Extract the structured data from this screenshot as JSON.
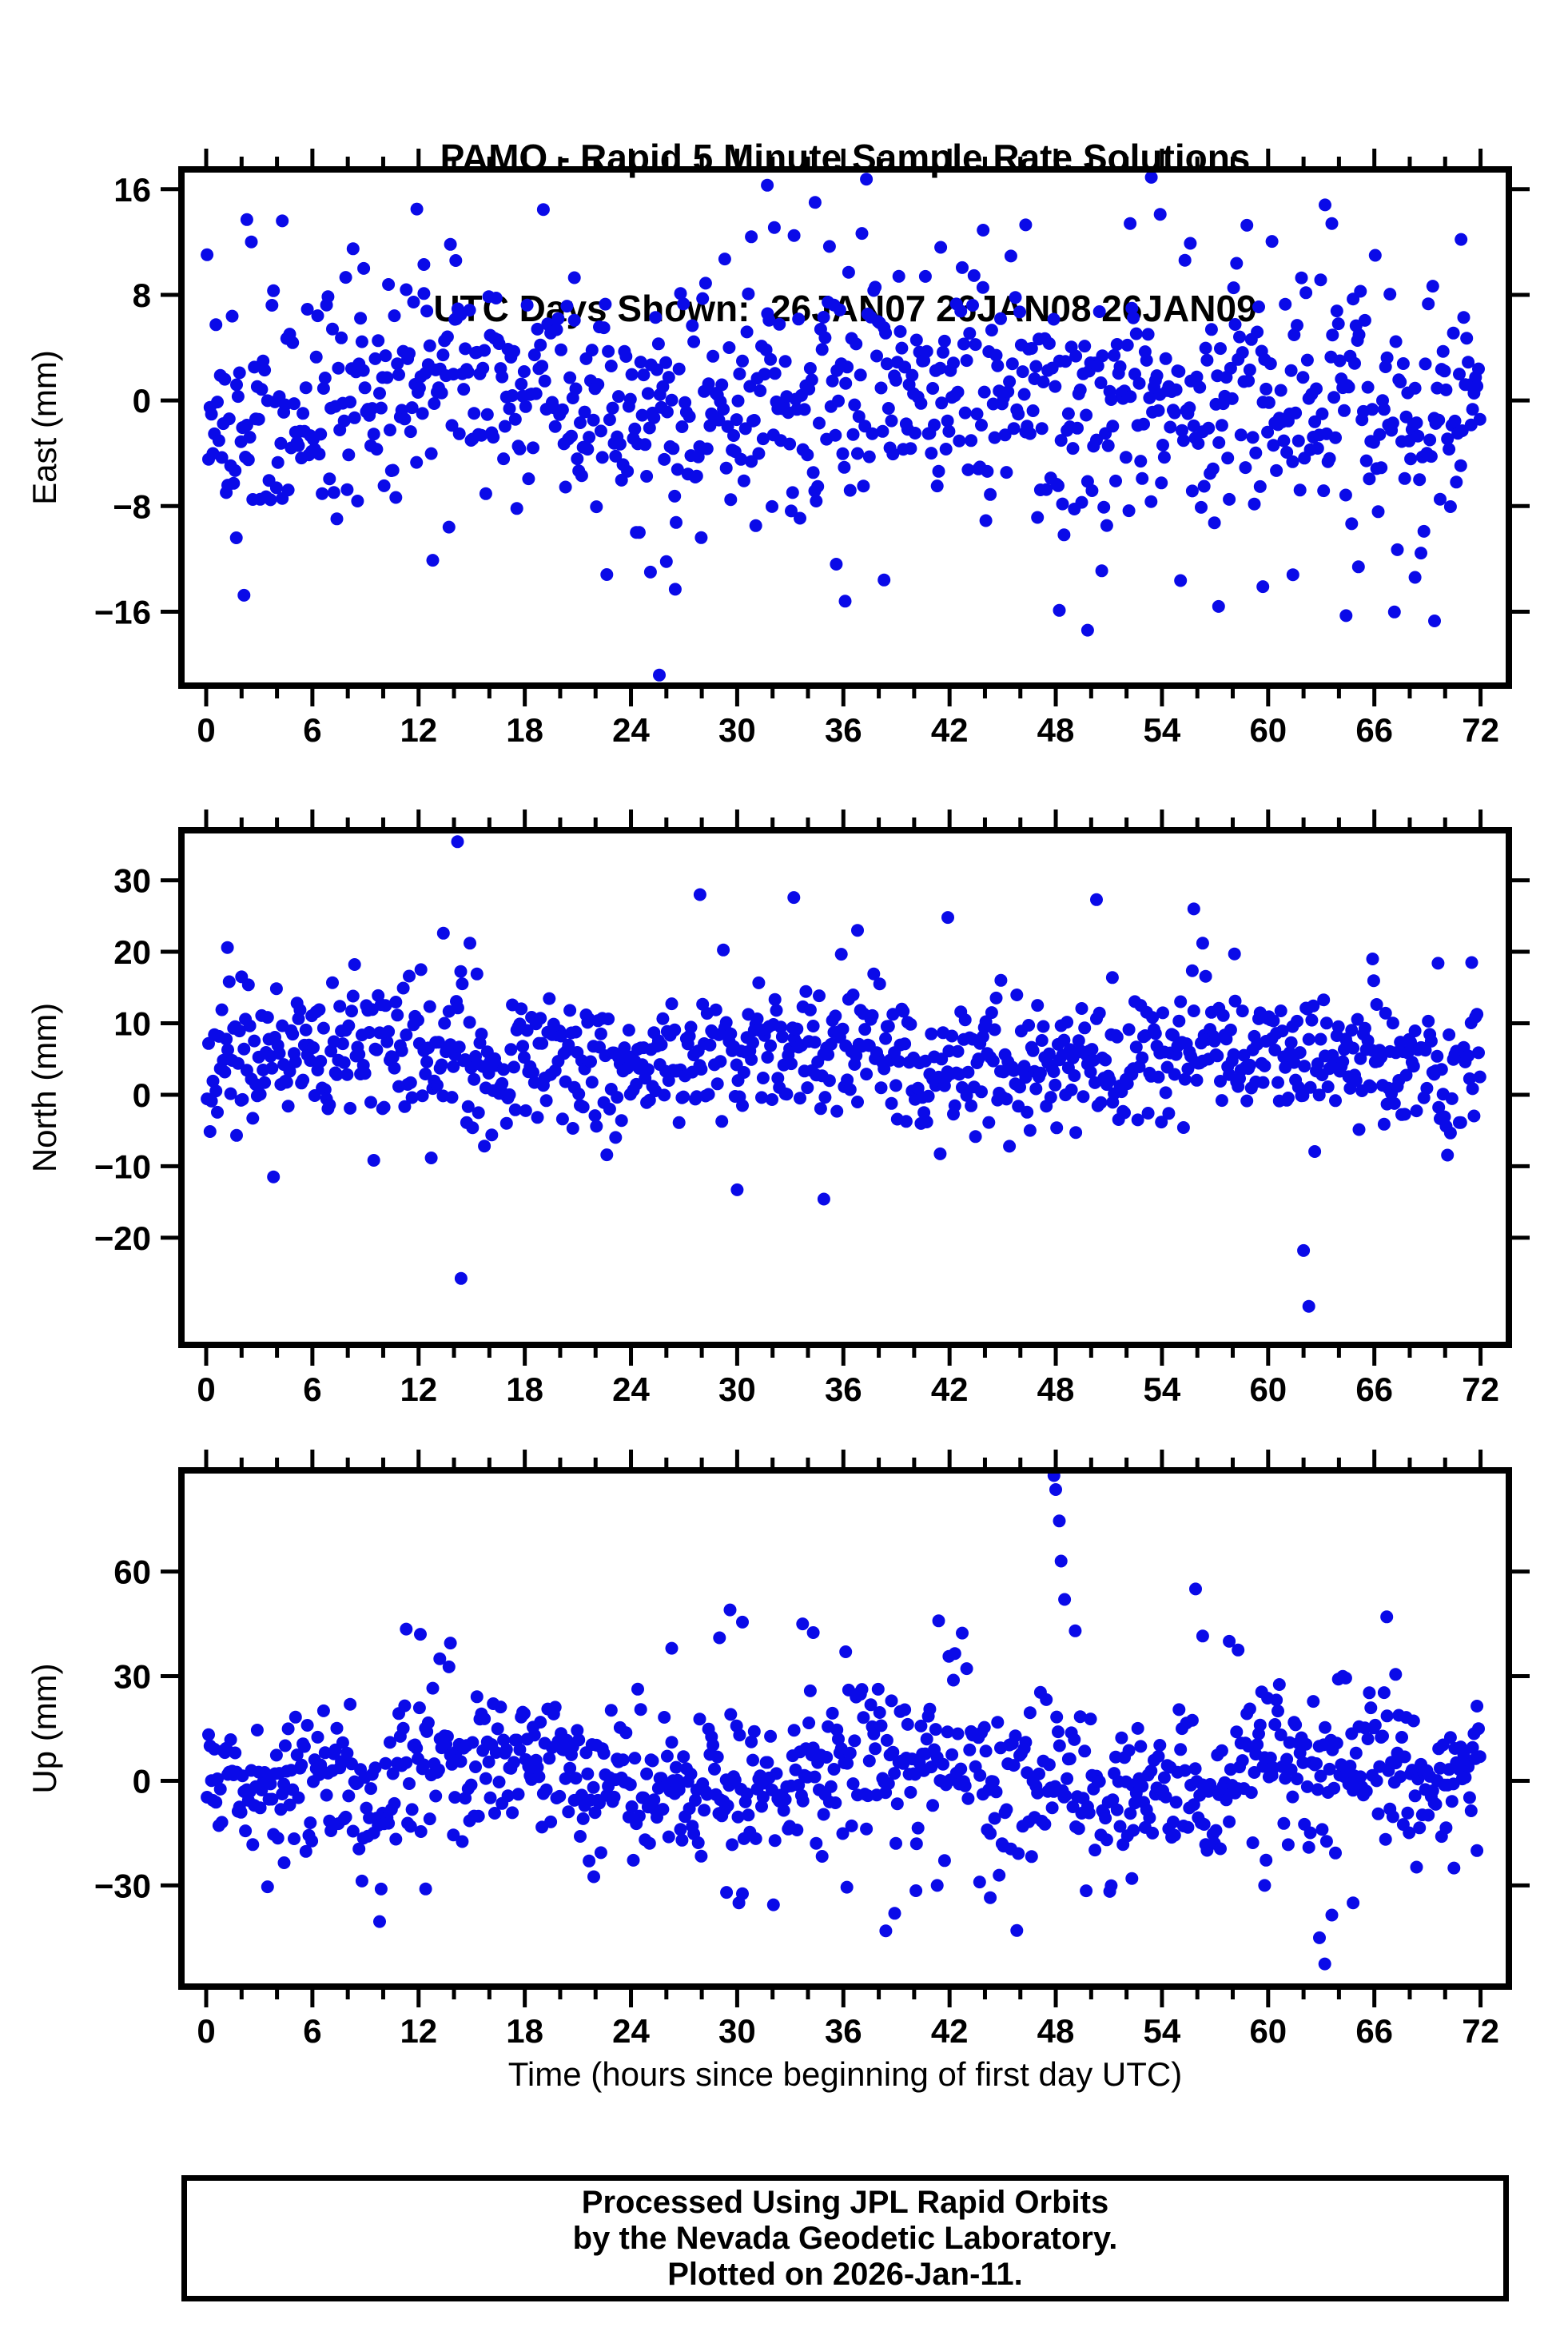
{
  "title": {
    "line1": "PAMO - Rapid 5 Minute Sample Rate Solutions",
    "line2": "UTC Days Shown:  26JAN07 26JAN08 26JAN09"
  },
  "footer": {
    "line1": "Processed Using JPL Rapid Orbits",
    "line2": "by the Nevada Geodetic Laboratory.",
    "line3": "Plotted on 2026-Jan-11."
  },
  "colors": {
    "marker": "#0a0ae8",
    "frame": "#000000",
    "background": "#ffffff",
    "text": "#000000"
  },
  "chart_data": {
    "type": "scatter",
    "station": "PAMO",
    "solution_type": "Rapid 5 Minute Sample Rate Solutions",
    "utc_days": [
      "26JAN07",
      "26JAN08",
      "26JAN09"
    ],
    "xlabel": "Time (hours since beginning of first day UTC)",
    "grid": false,
    "legend": false,
    "x_axis": {
      "min": -1.4,
      "max": 73.6,
      "major_ticks": [
        0,
        6,
        12,
        18,
        24,
        30,
        36,
        42,
        48,
        54,
        60,
        66,
        72
      ],
      "minor_tick_step": 2
    },
    "sampling": {
      "interval_hours": 0.0833333,
      "t_start": 0.05,
      "t_end": 72.0,
      "points_per_panel": 864
    },
    "panels": [
      {
        "id": "east",
        "ylabel": "East (mm)",
        "ylim": [
          -21.6,
          17.5
        ],
        "yticks": [
          -16,
          -8,
          0,
          8,
          16
        ],
        "cloud": {
          "seed": 7,
          "base": 0.3,
          "std": 4.3,
          "waves": [
            [
              1.3,
              24,
              -2.1
            ]
          ],
          "tail_prob": 0.04,
          "tail_std": 4.0,
          "tail_bias": -1.5
        },
        "outliers": [
          [
            1.7,
            -10.4
          ],
          [
            2.3,
            13.7
          ],
          [
            4.3,
            13.6
          ],
          [
            8.9,
            10.0
          ],
          [
            11.9,
            14.5
          ],
          [
            12.3,
            10.3
          ],
          [
            14.1,
            10.6
          ],
          [
            20.8,
            9.3
          ],
          [
            25.6,
            -20.8
          ],
          [
            25.1,
            -13.0
          ],
          [
            26.0,
            -12.2
          ],
          [
            26.5,
            -14.3
          ],
          [
            30.8,
            12.4
          ],
          [
            31.7,
            16.3
          ],
          [
            32.1,
            13.1
          ],
          [
            34.4,
            15.0
          ],
          [
            35.6,
            -12.4
          ],
          [
            36.1,
            -15.2
          ],
          [
            38.3,
            -13.6
          ],
          [
            41.5,
            11.6
          ],
          [
            43.9,
            12.9
          ],
          [
            46.3,
            13.3
          ],
          [
            48.2,
            -15.9
          ],
          [
            49.8,
            -17.4
          ],
          [
            50.6,
            -12.9
          ],
          [
            52.2,
            13.4
          ],
          [
            53.4,
            16.9
          ],
          [
            53.9,
            14.1
          ],
          [
            55.6,
            11.9
          ],
          [
            57.2,
            -15.6
          ],
          [
            59.7,
            -14.1
          ],
          [
            61.4,
            -13.2
          ],
          [
            63.6,
            13.4
          ],
          [
            64.4,
            -16.3
          ],
          [
            65.1,
            -12.6
          ],
          [
            68.3,
            -13.4
          ],
          [
            69.4,
            -16.7
          ],
          [
            70.9,
            12.2
          ]
        ]
      },
      {
        "id": "north",
        "ylabel": "North (mm)",
        "ylim": [
          -35,
          37
        ],
        "yticks": [
          -20,
          -10,
          0,
          10,
          20,
          30
        ],
        "cloud": {
          "seed": 11,
          "base": 5.0,
          "std": 4.4,
          "waves": [
            [
              1.4,
              24,
              -0.9
            ],
            [
              1.0,
              9,
              0.5
            ]
          ],
          "tail_prob": 0.05,
          "tail_std": 5.5,
          "tail_bias": -4
        },
        "outliers": [
          [
            1.2,
            20.6
          ],
          [
            2.0,
            16.5
          ],
          [
            13.4,
            22.6
          ],
          [
            14.2,
            35.4
          ],
          [
            14.4,
            -25.7
          ],
          [
            14.9,
            21.2
          ],
          [
            15.3,
            16.9
          ],
          [
            27.9,
            28.0
          ],
          [
            30.0,
            -13.3
          ],
          [
            33.2,
            27.6
          ],
          [
            34.9,
            -14.6
          ],
          [
            36.8,
            23.0
          ],
          [
            41.9,
            24.8
          ],
          [
            44.9,
            16.0
          ],
          [
            50.3,
            27.3
          ],
          [
            51.2,
            16.4
          ],
          [
            55.8,
            26.0
          ],
          [
            56.3,
            21.2
          ],
          [
            58.1,
            19.7
          ],
          [
            62.0,
            -21.8
          ],
          [
            62.3,
            -29.6
          ],
          [
            65.9,
            19.0
          ],
          [
            69.6,
            18.4
          ],
          [
            71.5,
            18.5
          ]
        ]
      },
      {
        "id": "up",
        "ylabel": "Up (mm)",
        "ylim": [
          -59,
          89
        ],
        "yticks": [
          -30,
          0,
          30,
          60
        ],
        "cloud": {
          "seed": 13,
          "base": 1.0,
          "std": 10.5,
          "waves": [
            [
              5,
              24,
              -2.62
            ],
            [
              4,
              6,
              1.5
            ]
          ],
          "tail_prob": 0.06,
          "tail_std": 13,
          "tail_bias": 3
        },
        "outliers": [
          [
            4.4,
            -23.5
          ],
          [
            11.3,
            43.5
          ],
          [
            12.1,
            42.0
          ],
          [
            12.4,
            -31.0
          ],
          [
            13.2,
            35.0
          ],
          [
            13.8,
            39.5
          ],
          [
            21.9,
            -27.5
          ],
          [
            26.3,
            38.0
          ],
          [
            29.0,
            41.0
          ],
          [
            29.4,
            -32.0
          ],
          [
            29.6,
            49.0
          ],
          [
            30.1,
            -35.0
          ],
          [
            30.3,
            45.5
          ],
          [
            33.7,
            45.0
          ],
          [
            34.3,
            42.5
          ],
          [
            36.2,
            -30.5
          ],
          [
            38.4,
            -43.0
          ],
          [
            38.9,
            -38.0
          ],
          [
            40.1,
            -31.5
          ],
          [
            41.3,
            -30.0
          ],
          [
            43.7,
            -29.0
          ],
          [
            44.3,
            -33.5
          ],
          [
            47.9,
            87.5
          ],
          [
            48.0,
            83.5
          ],
          [
            48.2,
            74.5
          ],
          [
            48.3,
            63.0
          ],
          [
            48.5,
            52.0
          ],
          [
            49.1,
            43.0
          ],
          [
            52.3,
            -28.0
          ],
          [
            55.9,
            55.0
          ],
          [
            56.3,
            41.5
          ],
          [
            57.8,
            40.0
          ],
          [
            58.3,
            37.5
          ],
          [
            59.8,
            -30.0
          ],
          [
            62.9,
            -45.0
          ],
          [
            63.2,
            -52.5
          ],
          [
            63.6,
            -38.5
          ],
          [
            64.8,
            -35.0
          ],
          [
            66.7,
            47.0
          ],
          [
            67.2,
            30.5
          ],
          [
            70.5,
            -25.0
          ],
          [
            71.8,
            -20.0
          ]
        ]
      }
    ]
  }
}
